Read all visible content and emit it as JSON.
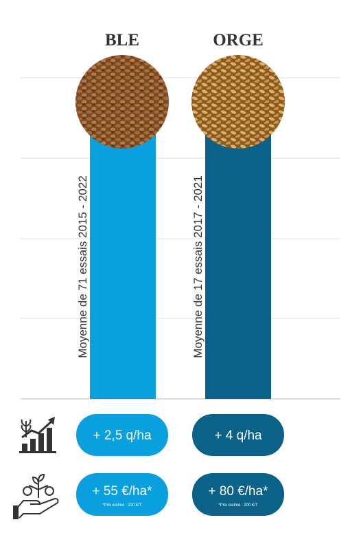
{
  "columns": [
    {
      "title": "BLE",
      "note": "Moyenne de 71 essais 2015 - 2022",
      "yield": "+ 2,5 q/ha",
      "margin": "+ 55 €/ha*",
      "price_note": "*Prix estimé : 220 €/T"
    },
    {
      "title": "ORGE",
      "note": "Moyenne de 17 essais 2017 - 2021",
      "yield": "+ 4 q/ha",
      "margin": "+ 80 €/ha*",
      "price_note": "*Prix estimé : 200 €/T"
    }
  ]
}
